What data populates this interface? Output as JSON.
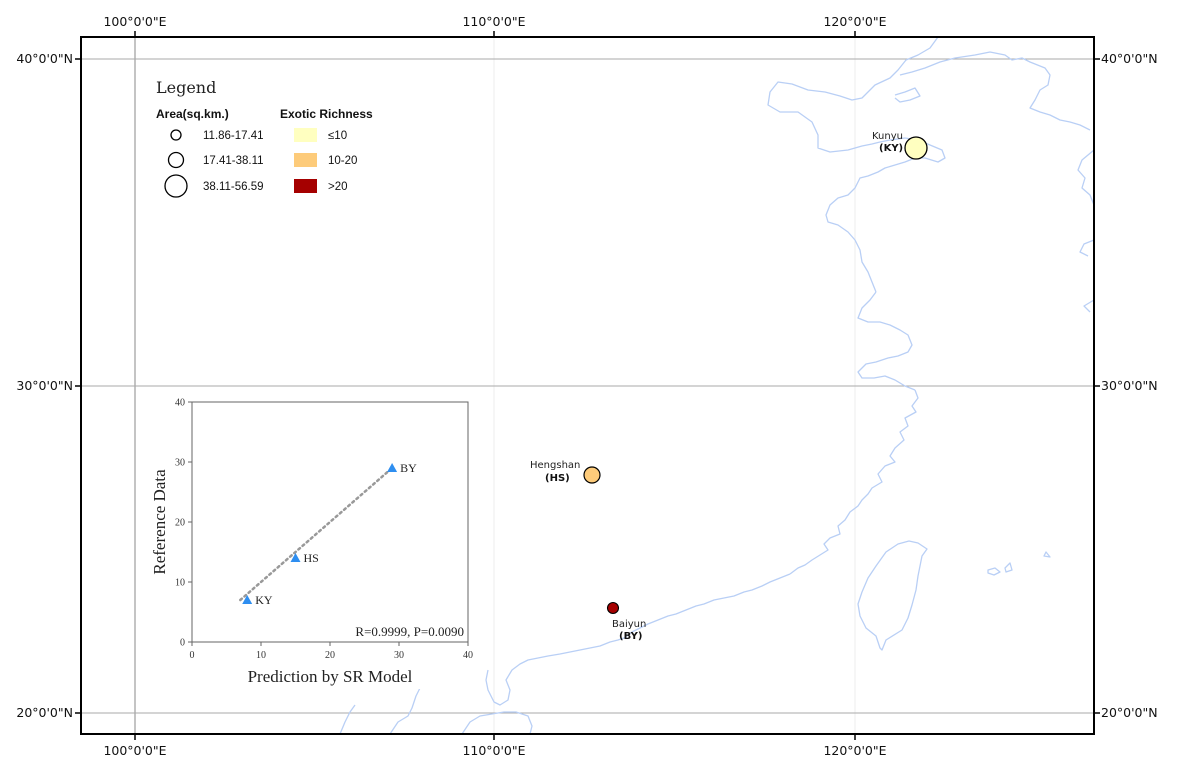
{
  "map": {
    "lon_labels": [
      "100°0'0\"E",
      "110°0'0\"E",
      "120°0'0\"E"
    ],
    "lat_labels": [
      "40°0'0\"N",
      "30°0'0\"N",
      "20°0'0\"N"
    ],
    "graticule_color": "#aaaaaa",
    "coast_color": "#b9cff5"
  },
  "legend": {
    "title": "Legend",
    "area_heading": "Area(sq.km.)",
    "area_classes": [
      "11.86-17.41",
      "17.41-38.11",
      "38.11-56.59"
    ],
    "richness_heading": "Exotic Richness",
    "richness_classes": [
      {
        "label": "≤10",
        "color": "#ffffc0"
      },
      {
        "label": "10-20",
        "color": "#fdcb7a"
      },
      {
        "label": ">20",
        "color": "#a50000"
      }
    ]
  },
  "sites": [
    {
      "name": "Kunyu",
      "code": "(KY)",
      "color": "#ffffc0",
      "area_class": 3
    },
    {
      "name": "Hengshan",
      "code": "(HS)",
      "color": "#fdcb7a",
      "area_class": 2
    },
    {
      "name": "Baiyun",
      "code": "(BY)",
      "color": "#a50000",
      "area_class": 1
    }
  ],
  "chart_data": {
    "type": "scatter",
    "title": "",
    "xlabel": "Prediction by SR Model",
    "ylabel": "Reference Data",
    "xlim": [
      0,
      40
    ],
    "ylim": [
      0,
      40
    ],
    "xticks": [
      "0",
      "10",
      "20",
      "30",
      "40"
    ],
    "yticks": [
      "0",
      "10",
      "20",
      "30",
      "40"
    ],
    "points": [
      {
        "label": "KY",
        "x": 8,
        "y": 7
      },
      {
        "label": "HS",
        "x": 15,
        "y": 14
      },
      {
        "label": "BY",
        "x": 29,
        "y": 29
      }
    ],
    "trendline": {
      "style": "dotted",
      "from": [
        7,
        7
      ],
      "to": [
        29,
        29
      ]
    },
    "annotation": "R=0.9999, P=0.0090",
    "marker_color": "#2e8ef0",
    "grid": false
  }
}
